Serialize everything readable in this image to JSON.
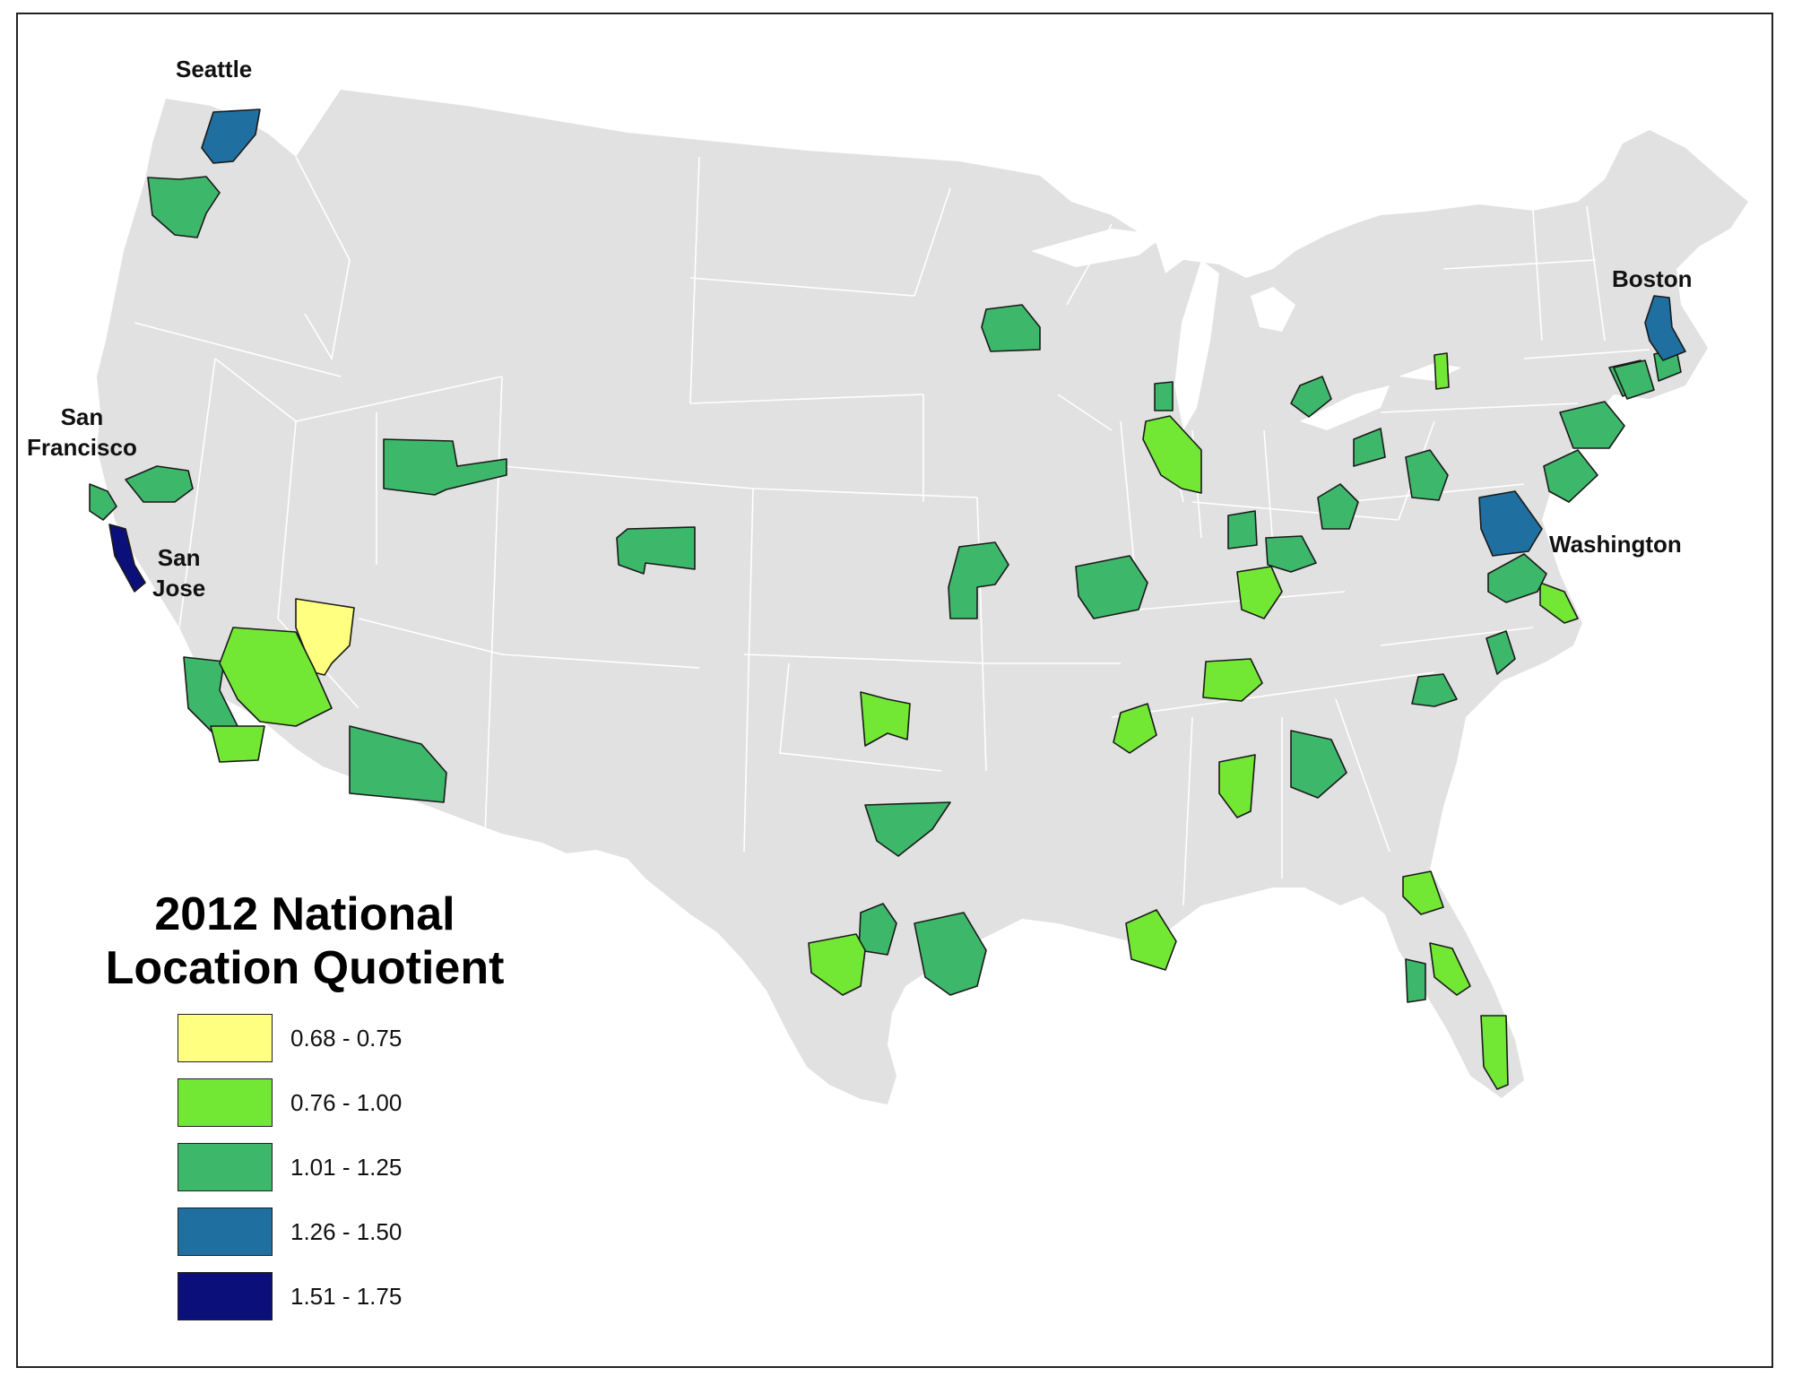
{
  "colors": {
    "background": "#ffffff",
    "land": "#e1e1e1",
    "state_border": "#ffffff",
    "region_outline": "#1a1a1a"
  },
  "city_labels": [
    "Seattle",
    "San\nFrancisco",
    "San\nJose",
    "Boston",
    "Washington"
  ],
  "legend": {
    "title": "2012 National\nLocation Quotient",
    "items": [
      {
        "label": "0.68 - 0.75",
        "color": "#ffff80"
      },
      {
        "label": "0.76 - 1.00",
        "color": "#73e834"
      },
      {
        "label": "1.01 - 1.25",
        "color": "#3db86a"
      },
      {
        "label": "1.26 - 1.50",
        "color": "#1f6fa0"
      },
      {
        "label": "1.51 - 1.75",
        "color": "#0b0f7a"
      }
    ]
  },
  "regions": [
    {
      "area": "Seattle",
      "class": 3
    },
    {
      "area": "Portland",
      "class": 2
    },
    {
      "area": "San Francisco",
      "class": 2
    },
    {
      "area": "San Jose",
      "class": 4
    },
    {
      "area": "Sacramento",
      "class": 2
    },
    {
      "area": "Las Vegas",
      "class": 0
    },
    {
      "area": "Los Angeles",
      "class": 2
    },
    {
      "area": "Riverside",
      "class": 1
    },
    {
      "area": "San Diego",
      "class": 1
    },
    {
      "area": "Phoenix",
      "class": 2
    },
    {
      "area": "Salt Lake City",
      "class": 2
    },
    {
      "area": "Denver",
      "class": 2
    },
    {
      "area": "Minneapolis",
      "class": 2
    },
    {
      "area": "Kansas City",
      "class": 2
    },
    {
      "area": "Oklahoma City",
      "class": 1
    },
    {
      "area": "Dallas",
      "class": 2
    },
    {
      "area": "Austin",
      "class": 2
    },
    {
      "area": "San Antonio",
      "class": 1
    },
    {
      "area": "Houston",
      "class": 2
    },
    {
      "area": "St. Louis",
      "class": 2
    },
    {
      "area": "Milwaukee",
      "class": 2
    },
    {
      "area": "Chicago",
      "class": 1
    },
    {
      "area": "Indianapolis",
      "class": 2
    },
    {
      "area": "Louisville",
      "class": 1
    },
    {
      "area": "Cincinnati",
      "class": 2
    },
    {
      "area": "Columbus",
      "class": 2
    },
    {
      "area": "Detroit",
      "class": 2
    },
    {
      "area": "Cleveland",
      "class": 2
    },
    {
      "area": "Pittsburgh",
      "class": 2
    },
    {
      "area": "Buffalo",
      "class": 1
    },
    {
      "area": "Nashville",
      "class": 1
    },
    {
      "area": "Memphis",
      "class": 1
    },
    {
      "area": "Birmingham",
      "class": 1
    },
    {
      "area": "Atlanta",
      "class": 2
    },
    {
      "area": "New Orleans",
      "class": 1
    },
    {
      "area": "Jacksonville",
      "class": 1
    },
    {
      "area": "Orlando",
      "class": 1
    },
    {
      "area": "Tampa",
      "class": 2
    },
    {
      "area": "Miami",
      "class": 1
    },
    {
      "area": "Charlotte",
      "class": 2
    },
    {
      "area": "Raleigh",
      "class": 2
    },
    {
      "area": "Virginia Beach",
      "class": 1
    },
    {
      "area": "Richmond",
      "class": 2
    },
    {
      "area": "Washington",
      "class": 3
    },
    {
      "area": "Baltimore",
      "class": 2
    },
    {
      "area": "Philadelphia",
      "class": 2
    },
    {
      "area": "New York",
      "class": 2
    },
    {
      "area": "Hartford",
      "class": 2
    },
    {
      "area": "Providence",
      "class": 2
    },
    {
      "area": "Boston",
      "class": 3
    }
  ]
}
